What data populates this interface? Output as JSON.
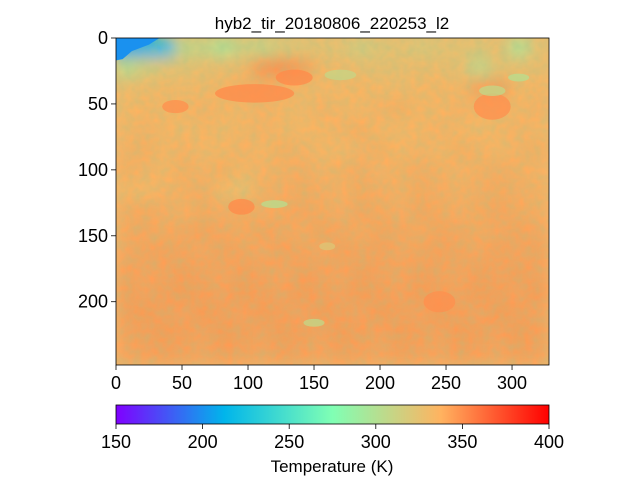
{
  "chart_data": {
    "type": "heatmap",
    "title": "hyb2_tir_20180806_220253_l2",
    "xlabel": "",
    "ylabel": "",
    "x_ticks": [
      0,
      50,
      100,
      150,
      200,
      250,
      300
    ],
    "y_ticks": [
      0,
      50,
      100,
      150,
      200
    ],
    "xlim": [
      0,
      328
    ],
    "ylim": [
      248,
      0
    ],
    "colorbar": {
      "label": "Temperature (K)",
      "range": [
        150,
        400
      ],
      "ticks": [
        150,
        200,
        250,
        300,
        350,
        400
      ],
      "colormap": "rainbow"
    },
    "colormap_stops": [
      "#8000ff",
      "#00b5eb",
      "#80ffb4",
      "#ffb360",
      "#ff0000"
    ],
    "summary": {
      "typical_temperature_K": 340,
      "upper_band_K": 330,
      "lower_band_K": 345,
      "cold_corner_K": 200
    },
    "temperature_grid_rows": [
      [
        205,
        210,
        215,
        310,
        312,
        300,
        315,
        312,
        322,
        325,
        328,
        326,
        318,
        325,
        328,
        322,
        326,
        328,
        325,
        330,
        300,
        328
      ],
      [
        305,
        318,
        325,
        328,
        330,
        332,
        335,
        348,
        350,
        346,
        336,
        334,
        332,
        330,
        331,
        333,
        332,
        330,
        310,
        328,
        330,
        332
      ],
      [
        332,
        334,
        336,
        335,
        336,
        338,
        340,
        340,
        339,
        337,
        336,
        336,
        338,
        336,
        335,
        337,
        338,
        337,
        344,
        346,
        336,
        338
      ],
      [
        336,
        338,
        337,
        338,
        339,
        338,
        337,
        339,
        338,
        336,
        339,
        338,
        337,
        339,
        340,
        338,
        338,
        339,
        338,
        337,
        338,
        339
      ],
      [
        338,
        339,
        338,
        336,
        338,
        337,
        338,
        339,
        338,
        337,
        338,
        339,
        340,
        338,
        337,
        338,
        339,
        338,
        336,
        338,
        339,
        338
      ],
      [
        339,
        340,
        338,
        339,
        337,
        338,
        339,
        338,
        340,
        339,
        338,
        337,
        339,
        340,
        338,
        339,
        338,
        340,
        339,
        338,
        339,
        340
      ],
      [
        340,
        339,
        338,
        340,
        339,
        340,
        338,
        339,
        340,
        341,
        339,
        340,
        341,
        339,
        340,
        341,
        340,
        339,
        340,
        341,
        340,
        339
      ],
      [
        338,
        336,
        339,
        340,
        341,
        335,
        330,
        340,
        341,
        342,
        341,
        340,
        342,
        341,
        340,
        342,
        341,
        340,
        341,
        342,
        341,
        340
      ],
      [
        341,
        342,
        341,
        340,
        342,
        341,
        342,
        341,
        342,
        343,
        342,
        341,
        343,
        342,
        341,
        343,
        342,
        341,
        342,
        343,
        342,
        341
      ],
      [
        342,
        343,
        342,
        343,
        344,
        343,
        342,
        344,
        343,
        342,
        344,
        343,
        342,
        344,
        343,
        342,
        344,
        343,
        342,
        343,
        344,
        343
      ],
      [
        343,
        344,
        345,
        344,
        343,
        345,
        344,
        343,
        345,
        344,
        343,
        345,
        344,
        345,
        343,
        344,
        345,
        344,
        343,
        345,
        344,
        345
      ],
      [
        345,
        344,
        345,
        346,
        345,
        344,
        346,
        345,
        344,
        346,
        345,
        344,
        346,
        345,
        344,
        346,
        345,
        344,
        346,
        345,
        346,
        345
      ],
      [
        346,
        345,
        346,
        347,
        346,
        345,
        347,
        346,
        345,
        347,
        346,
        345,
        347,
        346,
        345,
        347,
        346,
        345,
        347,
        346,
        345,
        347
      ],
      [
        346,
        347,
        346,
        345,
        347,
        346,
        345,
        347,
        346,
        345,
        347,
        346,
        345,
        347,
        346,
        345,
        347,
        346,
        345,
        347,
        346,
        345
      ],
      [
        345,
        346,
        347,
        346,
        345,
        347,
        346,
        345,
        347,
        346,
        345,
        347,
        346,
        345,
        347,
        346,
        345,
        347,
        346,
        345,
        347,
        346
      ],
      [
        344,
        345,
        346,
        345,
        344,
        346,
        345,
        344,
        346,
        345,
        344,
        346,
        345,
        344,
        346,
        345,
        344,
        346,
        345,
        344,
        346,
        345
      ]
    ]
  }
}
